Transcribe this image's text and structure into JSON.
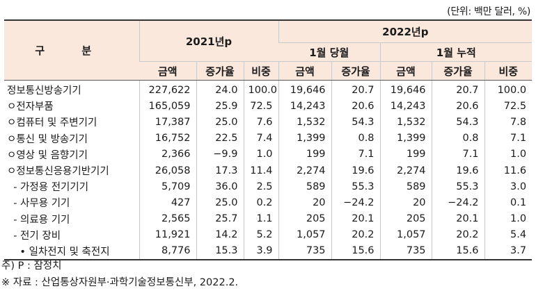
{
  "unit_note": "(단위: 백만 달러, %)",
  "header": {
    "category": "구 분",
    "year_2021": "2021년p",
    "year_2022": "2022년p",
    "jan_month": "1월 당월",
    "jan_cumulative": "1월 누적",
    "col_amount": "금액",
    "col_growth": "증가율",
    "col_share": "비중"
  },
  "rows": [
    {
      "label": "정보통신방송기기",
      "a21": "227,622",
      "g21": "24.0",
      "s21": "100.0",
      "am": "19,646",
      "gm": "20.7",
      "ac": "19,646",
      "gc": "20.7",
      "sc": "100.0"
    },
    {
      "label": "ㅇ전자부품",
      "a21": "165,059",
      "g21": "25.9",
      "s21": "72.5",
      "am": "14,243",
      "gm": "20.6",
      "ac": "14,243",
      "gc": "20.6",
      "sc": "72.5"
    },
    {
      "label": "ㅇ컴퓨터 및 주변기기",
      "a21": "17,387",
      "g21": "25.0",
      "s21": "7.6",
      "am": "1,532",
      "gm": "54.3",
      "ac": "1,532",
      "gc": "54.3",
      "sc": "7.8"
    },
    {
      "label": "ㅇ통신 및 방송기기",
      "a21": "16,752",
      "g21": "22.5",
      "s21": "7.4",
      "am": "1,399",
      "gm": "0.8",
      "ac": "1,399",
      "gc": "0.8",
      "sc": "7.1"
    },
    {
      "label": "ㅇ영상 및 음향기기",
      "a21": "2,366",
      "g21": "−9.9",
      "s21": "1.0",
      "am": "199",
      "gm": "7.1",
      "ac": "199",
      "gc": "7.1",
      "sc": "1.0"
    },
    {
      "label": "ㅇ정보통신응용기반기기",
      "a21": "26,058",
      "g21": "17.3",
      "s21": "11.4",
      "am": "2,274",
      "gm": "19.6",
      "ac": "2,274",
      "gc": "19.6",
      "sc": "11.6"
    },
    {
      "label": "  - 가정용 전기기기",
      "a21": "5,709",
      "g21": "36.0",
      "s21": "2.5",
      "am": "589",
      "gm": "55.3",
      "ac": "589",
      "gc": "55.3",
      "sc": "3.0"
    },
    {
      "label": "  - 사무용 기기",
      "a21": "427",
      "g21": "25.0",
      "s21": "0.2",
      "am": "20",
      "gm": "−24.2",
      "ac": "20",
      "gc": "−24.2",
      "sc": "0.1"
    },
    {
      "label": "  - 의료용 기기",
      "a21": "2,565",
      "g21": "25.7",
      "s21": "1.1",
      "am": "205",
      "gm": "20.1",
      "ac": "205",
      "gc": "20.1",
      "sc": "1.0"
    },
    {
      "label": "  - 전기 장비",
      "a21": "11,921",
      "g21": "14.2",
      "s21": "5.2",
      "am": "1,057",
      "gm": "20.2",
      "ac": "1,057",
      "gc": "20.2",
      "sc": "5.4"
    },
    {
      "label": "    • 일차전지 및 축전지",
      "a21": "8,776",
      "g21": "15.3",
      "s21": "3.9",
      "am": "735",
      "gm": "15.6",
      "ac": "735",
      "gc": "15.6",
      "sc": "3.7"
    }
  ],
  "footnotes": {
    "note": "주) P : 잠정치",
    "source": "※ 자료 : 산업통상자원부·과학기술정보통신부, 2022.2."
  }
}
